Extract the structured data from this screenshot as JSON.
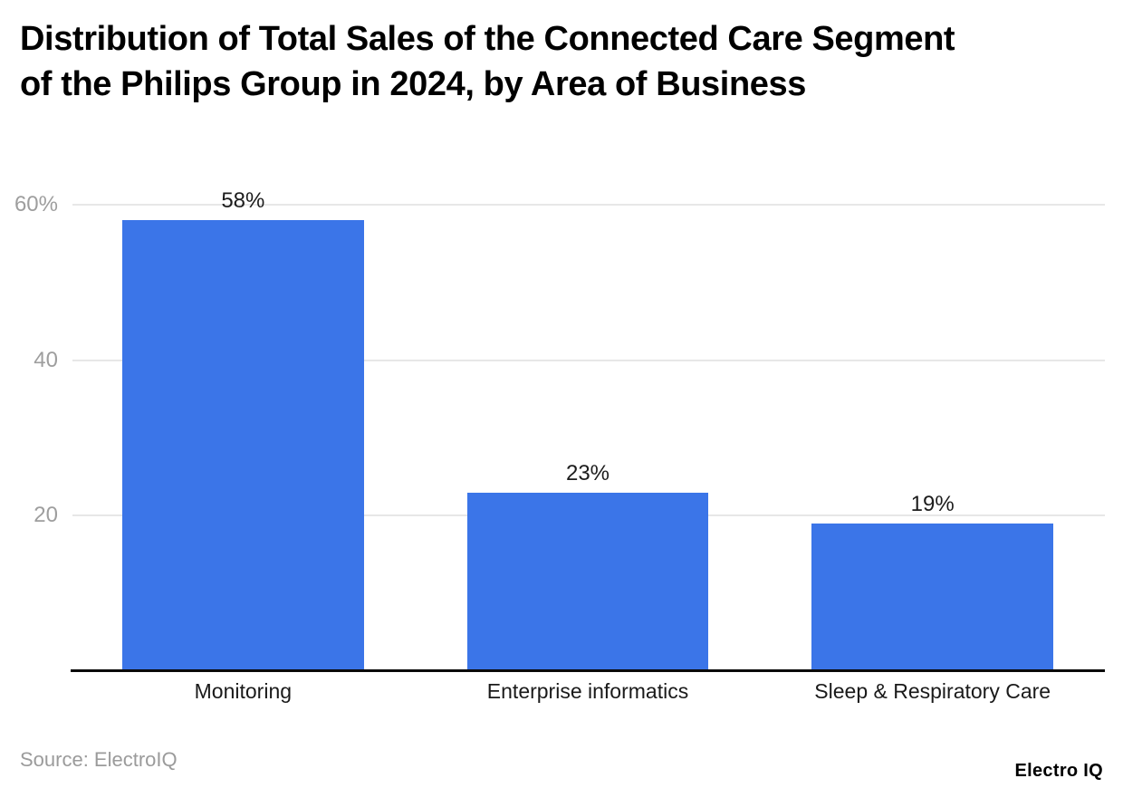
{
  "title_lines": [
    "Distribution of Total Sales of the Connected Care Segment",
    "of the Philips Group in 2024, by Area of Business"
  ],
  "source_label": "Source: ElectroIQ",
  "brand": "Electro IQ",
  "colors": {
    "bar": "#3b75e8",
    "gridline": "#e7e7e7",
    "axis_line": "#0a0a0a",
    "tick_label": "#9e9e9e",
    "value_label": "#1c1c1c",
    "category_label": "#1a1a1a",
    "title": "#000000",
    "source": "#9b9b9b",
    "background": "#ffffff"
  },
  "chart_data": {
    "type": "bar",
    "title": "Distribution of Total Sales of the Connected Care Segment of the Philips Group in 2024, by Area of Business",
    "categories": [
      "Monitoring",
      "Enterprise informatics",
      "Sleep & Respiratory Care"
    ],
    "values": [
      58,
      23,
      19
    ],
    "value_labels": [
      "58%",
      "23%",
      "19%"
    ],
    "unit": "%",
    "xlabel": "",
    "ylabel": "",
    "ylim": [
      0,
      60
    ],
    "y_ticks": [
      {
        "value": 60,
        "label": "60%"
      },
      {
        "value": 40,
        "label": "40"
      },
      {
        "value": 20,
        "label": "20"
      }
    ],
    "grid": true,
    "legend": false
  }
}
